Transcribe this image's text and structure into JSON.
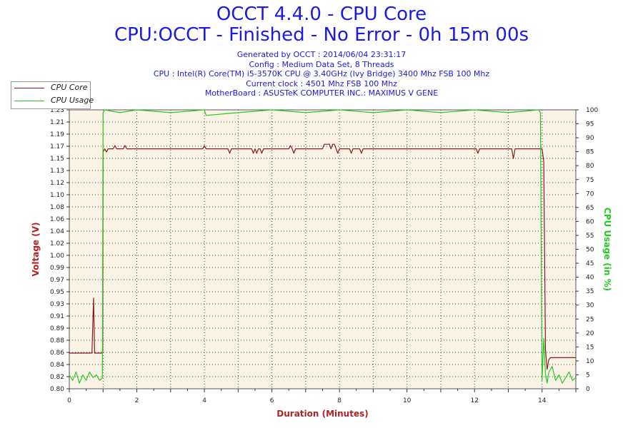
{
  "header": {
    "title": "OCCT 4.4.0 - CPU Core",
    "subtitle": "CPU:OCCT - Finished - No Error - 0h 15m 00s",
    "info_lines": [
      "Generated by OCCT : 2014/06/04 23:31:17",
      "Config : Medium Data Set, 8 Threads",
      "CPU : Intel(R) Core(TM) i5-3570K CPU @ 3.40GHz (Ivy Bridge) 3400 Mhz FSB 100 Mhz",
      "Current clock : 4501 Mhz FSB 100 Mhz",
      "MotherBoard : ASUSTeK COMPUTER INC.: MAXIMUS V GENE"
    ]
  },
  "colors": {
    "voltage": "#8b1a1a",
    "usage": "#22cc22",
    "plot_bg": "#fbf3e6",
    "title": "#1a1ae6"
  },
  "chart_data": {
    "type": "line",
    "xlabel": "Duration (Minutes)",
    "ylabel_left": "Voltage (V)",
    "ylabel_right": "CPU Usage (in %)",
    "xlim": [
      0,
      15
    ],
    "ylim_left": [
      0.8,
      1.23
    ],
    "ylim_right": [
      0,
      100
    ],
    "x_ticks": [
      0,
      2,
      4,
      6,
      8,
      10,
      12,
      14
    ],
    "y_left_ticks": [
      "0.80",
      "0.82",
      "0.84",
      "0.86",
      "0.88",
      "0.89",
      "0.91",
      "0.93",
      "0.95",
      "0.97",
      "0.99",
      "1.00",
      "1.02",
      "1.04",
      "1.06",
      "1.08",
      "1.10",
      "1.12",
      "1.13",
      "1.15",
      "1.17",
      "1.19",
      "1.21",
      "1.23"
    ],
    "y_right_ticks": [
      0,
      5,
      10,
      15,
      20,
      25,
      30,
      35,
      40,
      45,
      50,
      55,
      60,
      65,
      70,
      75,
      80,
      85,
      90,
      95,
      100
    ],
    "grid": true,
    "legend_position": "top-left",
    "series": [
      {
        "name": "CPU Core",
        "axis": "left",
        "x": [
          0,
          0.6,
          0.67,
          0.72,
          0.75,
          0.78,
          0.95,
          0.99,
          1.0,
          1.05,
          1.1,
          1.15,
          1.2,
          1.25,
          1.3,
          1.35,
          1.4,
          1.45,
          1.5,
          1.6,
          1.65,
          1.7,
          1.75,
          2.0,
          3.95,
          4.0,
          4.05,
          4.7,
          4.75,
          4.8,
          5.4,
          5.45,
          5.5,
          5.55,
          5.6,
          5.65,
          5.7,
          5.75,
          6.5,
          6.55,
          6.6,
          6.65,
          6.7,
          6.75,
          7.5,
          7.55,
          7.7,
          7.75,
          7.8,
          7.85,
          7.9,
          7.95,
          8.0,
          8.05,
          8.3,
          8.35,
          8.4,
          8.45,
          8.6,
          8.65,
          8.7,
          8.75,
          12.05,
          12.1,
          12.15,
          13.1,
          13.15,
          13.2,
          13.95,
          14.0,
          14.05,
          14.1,
          14.15,
          14.2,
          14.25,
          14.35,
          15.0
        ],
        "values": [
          0.855,
          0.855,
          0.855,
          0.94,
          0.855,
          0.855,
          0.855,
          0.855,
          1.165,
          1.17,
          1.165,
          1.17,
          1.17,
          1.17,
          1.17,
          1.175,
          1.17,
          1.17,
          1.17,
          1.17,
          1.175,
          1.17,
          1.17,
          1.17,
          1.17,
          1.175,
          1.17,
          1.17,
          1.163,
          1.17,
          1.17,
          1.163,
          1.17,
          1.163,
          1.17,
          1.17,
          1.163,
          1.17,
          1.17,
          1.175,
          1.17,
          1.163,
          1.17,
          1.17,
          1.17,
          1.177,
          1.177,
          1.17,
          1.177,
          1.177,
          1.17,
          1.163,
          1.17,
          1.17,
          1.17,
          1.163,
          1.17,
          1.17,
          1.17,
          1.163,
          1.17,
          1.17,
          1.17,
          1.163,
          1.17,
          1.17,
          1.155,
          1.17,
          1.17,
          1.17,
          1.15,
          0.86,
          0.83,
          0.845,
          0.848,
          0.848,
          0.848
        ]
      },
      {
        "name": "CPU Usage",
        "axis": "right",
        "x": [
          0,
          0.1,
          0.2,
          0.3,
          0.4,
          0.5,
          0.6,
          0.7,
          0.8,
          0.9,
          0.98,
          1.0,
          1.05,
          1.5,
          2.0,
          3.0,
          4.0,
          4.05,
          5.0,
          6.0,
          7.0,
          8.0,
          9.0,
          10.0,
          11.0,
          12.0,
          13.0,
          13.9,
          13.95,
          14.0,
          14.05,
          14.1,
          14.15,
          14.2,
          14.3,
          14.4,
          14.5,
          14.6,
          14.7,
          14.8,
          14.9,
          15.0
        ],
        "values": [
          5,
          3,
          6,
          2,
          5,
          3,
          6,
          4,
          5,
          3,
          4,
          99,
          100,
          99,
          100,
          99,
          100,
          98,
          99,
          100,
          99,
          100,
          99,
          100,
          99,
          100,
          99,
          100,
          99,
          3,
          18,
          5,
          2,
          6,
          8,
          3,
          5,
          2,
          4,
          6,
          3,
          4
        ]
      }
    ]
  }
}
